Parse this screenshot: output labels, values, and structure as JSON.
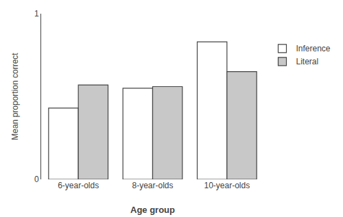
{
  "chart_data": {
    "type": "bar",
    "categories": [
      "6-year-olds",
      "8-year-olds",
      "10-year-olds"
    ],
    "series": [
      {
        "name": "Inference",
        "color": "#ffffff",
        "values": [
          0.43,
          0.55,
          0.83
        ]
      },
      {
        "name": "Literal",
        "color": "#c8c8c8",
        "values": [
          0.57,
          0.56,
          0.65
        ]
      }
    ],
    "x_label": "Age group",
    "y_label": "Mean proportion correct",
    "ylim": [
      0,
      1
    ],
    "yticks": [
      0,
      1
    ],
    "grid": false,
    "legend": "right"
  }
}
